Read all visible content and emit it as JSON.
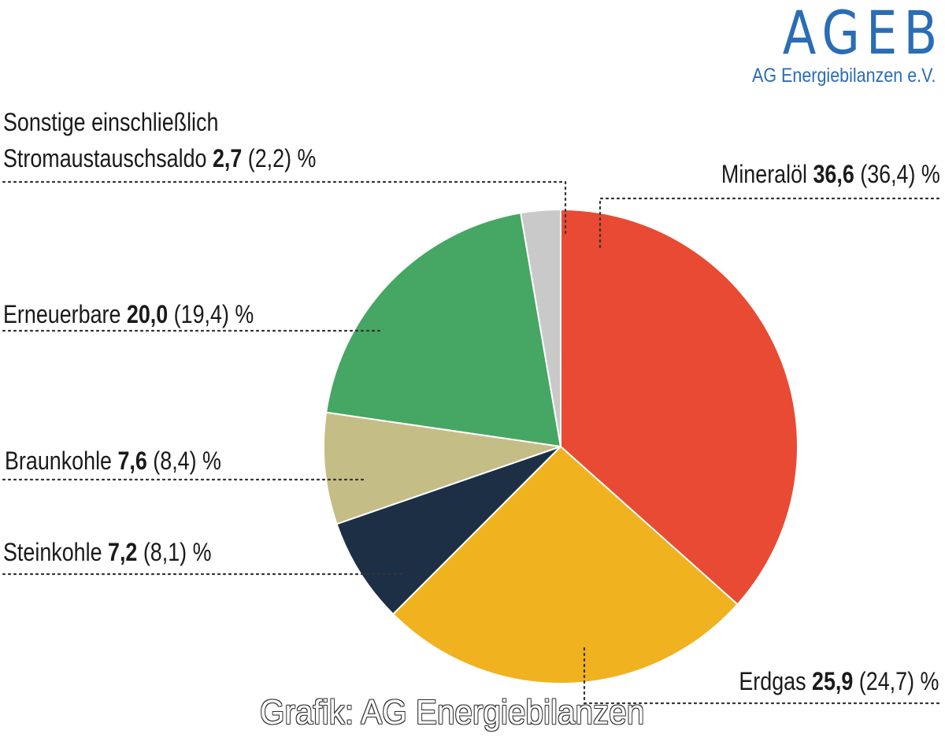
{
  "logo": {
    "mark": "AGEB",
    "subtitle": "AG Energiebilanzen e.V."
  },
  "credit": "Grafik: AG Energiebilanzen",
  "colors": {
    "mineraloel": "#e84a33",
    "erdgas": "#f0b21f",
    "steinkohle": "#1c2f45",
    "braunkohle": "#c4bd86",
    "erneuerbare": "#46a663",
    "sonstige": "#c9c9c9"
  },
  "labels": {
    "sonstige_line1": "Sonstige einschließlich",
    "sonstige_line2": "Stromaustauschsaldo",
    "sonstige_value": "2,7",
    "sonstige_prev": "(2,2) %",
    "mineraloel_name": "Mineralöl",
    "mineraloel_value": "36,6",
    "mineraloel_prev": "(36,4) %",
    "erneuerbare_name": "Erneuerbare",
    "erneuerbare_value": "20,0",
    "erneuerbare_prev": "(19,4) %",
    "braunkohle_name": "Braunkohle",
    "braunkohle_value": "7,6",
    "braunkohle_prev": "(8,4) %",
    "steinkohle_name": "Steinkohle",
    "steinkohle_value": "7,2",
    "steinkohle_prev": "(8,1) %",
    "erdgas_name": "Erdgas",
    "erdgas_value": "25,9",
    "erdgas_prev": "(24,7) %"
  },
  "chart_data": {
    "type": "pie",
    "unit": "%",
    "slices": [
      {
        "name": "Mineralöl",
        "value": 36.6,
        "previous": 36.4,
        "color": "#e84a33"
      },
      {
        "name": "Erdgas",
        "value": 25.9,
        "previous": 24.7,
        "color": "#f0b21f"
      },
      {
        "name": "Steinkohle",
        "value": 7.2,
        "previous": 8.1,
        "color": "#1c2f45"
      },
      {
        "name": "Braunkohle",
        "value": 7.6,
        "previous": 8.4,
        "color": "#c4bd86"
      },
      {
        "name": "Erneuerbare",
        "value": 20.0,
        "previous": 19.4,
        "color": "#46a663"
      },
      {
        "name": "Sonstige einschließlich Stromaustauschsaldo",
        "value": 2.7,
        "previous": 2.2,
        "color": "#c9c9c9"
      }
    ],
    "start_angle": "12 o'clock",
    "direction": "clockwise",
    "legend": "none"
  }
}
